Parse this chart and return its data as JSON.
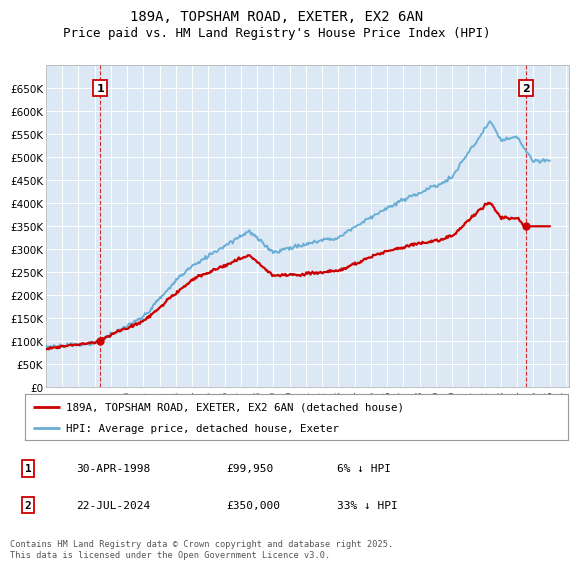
{
  "title1": "189A, TOPSHAM ROAD, EXETER, EX2 6AN",
  "title2": "Price paid vs. HM Land Registry's House Price Index (HPI)",
  "ylim": [
    0,
    700000
  ],
  "yticks": [
    0,
    50000,
    100000,
    150000,
    200000,
    250000,
    300000,
    350000,
    400000,
    450000,
    500000,
    550000,
    600000,
    650000
  ],
  "ytick_labels": [
    "£0",
    "£50K",
    "£100K",
    "£150K",
    "£200K",
    "£250K",
    "£300K",
    "£350K",
    "£400K",
    "£450K",
    "£500K",
    "£550K",
    "£600K",
    "£650K"
  ],
  "xlim_start": 1995.3,
  "xlim_end": 2027.2,
  "xticks": [
    1995,
    1996,
    1997,
    1998,
    1999,
    2000,
    2001,
    2002,
    2003,
    2004,
    2005,
    2006,
    2007,
    2008,
    2009,
    2010,
    2011,
    2012,
    2013,
    2014,
    2015,
    2016,
    2017,
    2018,
    2019,
    2020,
    2021,
    2022,
    2023,
    2024,
    2025,
    2026,
    2027
  ],
  "background_color": "#ffffff",
  "plot_bg_color": "#dce9f5",
  "grid_color": "#ffffff",
  "hpi_line_color": "#6aaed6",
  "price_line_color": "#cc0000",
  "sale1_x": 1998.33,
  "sale1_y": 99950,
  "sale2_x": 2024.55,
  "sale2_y": 350000,
  "legend_line1": "189A, TOPSHAM ROAD, EXETER, EX2 6AN (detached house)",
  "legend_line2": "HPI: Average price, detached house, Exeter",
  "table_row1": [
    "1",
    "30-APR-1998",
    "£99,950",
    "6% ↓ HPI"
  ],
  "table_row2": [
    "2",
    "22-JUL-2024",
    "£350,000",
    "33% ↓ HPI"
  ],
  "footnote": "Contains HM Land Registry data © Crown copyright and database right 2025.\nThis data is licensed under the Open Government Licence v3.0.",
  "title_fontsize": 10,
  "subtitle_fontsize": 9,
  "tick_fontsize": 7.5,
  "hpi_linewidth": 1.4,
  "price_linewidth": 1.6
}
